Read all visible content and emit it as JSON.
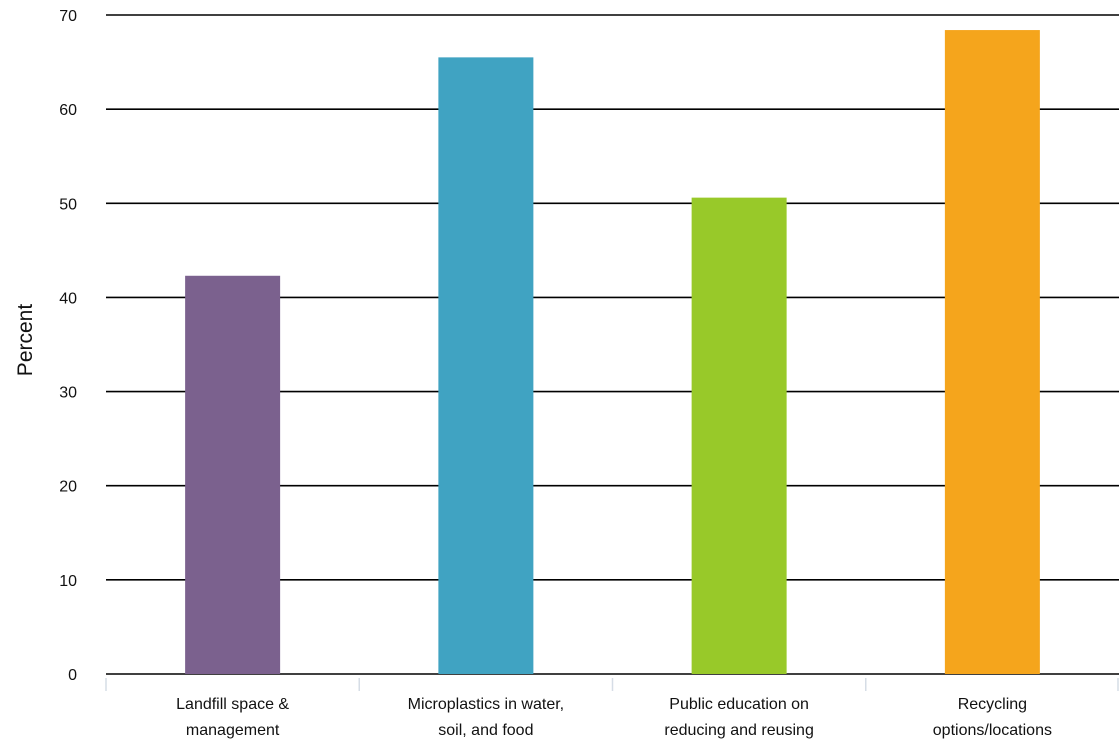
{
  "chart_data": {
    "type": "bar",
    "title": "",
    "xlabel": "",
    "ylabel": "Percent",
    "ylim": [
      0,
      70
    ],
    "yticks": [
      0,
      10,
      20,
      30,
      40,
      50,
      60,
      70
    ],
    "grid": true,
    "legend": "none",
    "categories": [
      [
        "Landfill space &",
        "management"
      ],
      [
        "Microplastics in water,",
        "soil, and food"
      ],
      [
        "Public education on",
        "reducing and reusing"
      ],
      [
        "Recycling",
        "options/locations"
      ]
    ],
    "values": [
      42.3,
      65.5,
      50.6,
      68.4
    ],
    "colors": [
      "#7b618e",
      "#40a3c2",
      "#98c929",
      "#f5a51c"
    ]
  }
}
